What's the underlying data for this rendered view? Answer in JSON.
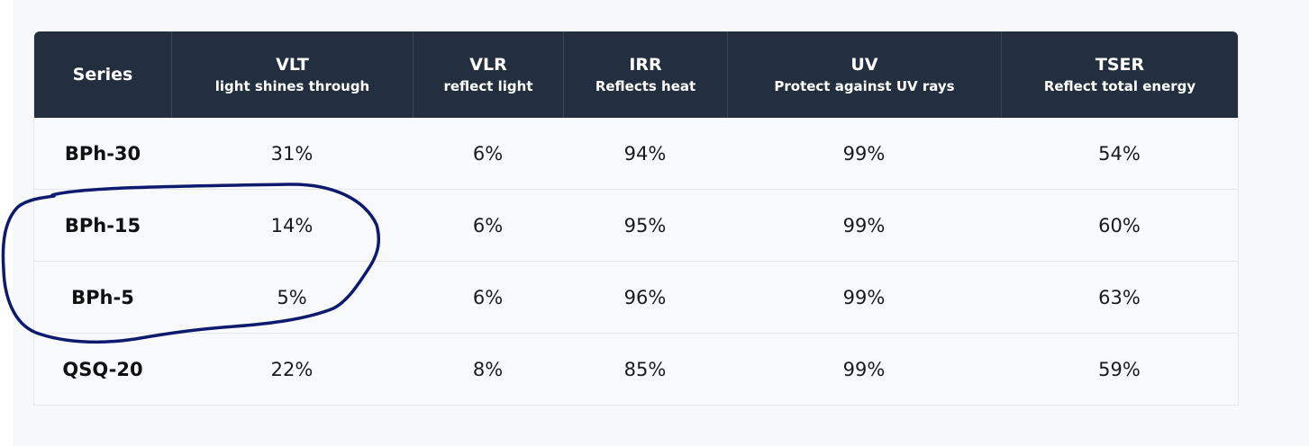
{
  "table": {
    "headers": [
      {
        "title": "Series",
        "subtitle": ""
      },
      {
        "title": "VLT",
        "subtitle": "light shines through"
      },
      {
        "title": "VLR",
        "subtitle": "reflect light"
      },
      {
        "title": "IRR",
        "subtitle": "Reflects heat"
      },
      {
        "title": "UV",
        "subtitle": "Protect against UV rays"
      },
      {
        "title": "TSER",
        "subtitle": "Reflect total energy"
      }
    ],
    "rows": [
      [
        "BPh-30",
        "31%",
        "6%",
        "94%",
        "99%",
        "54%"
      ],
      [
        "BPh-15",
        "14%",
        "6%",
        "95%",
        "99%",
        "60%"
      ],
      [
        "BPh-5",
        "5%",
        "6%",
        "96%",
        "99%",
        "63%"
      ],
      [
        "QSQ-20",
        "22%",
        "8%",
        "85%",
        "99%",
        "59%"
      ]
    ]
  },
  "annotation": {
    "stroke_color": "#0d1a6e",
    "circled_rows": [
      "BPh-15",
      "BPh-5"
    ]
  }
}
